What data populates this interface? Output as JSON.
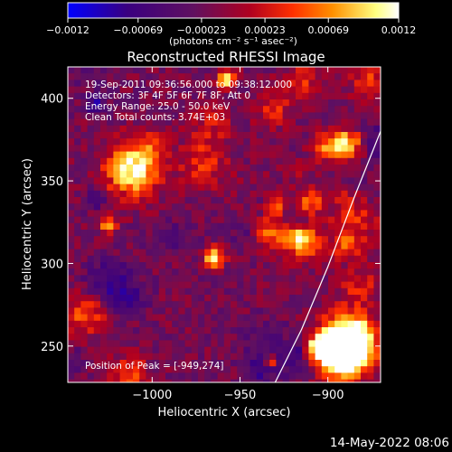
{
  "chart_data": {
    "type": "heatmap",
    "title": "Reconstructed RHESSI Image",
    "xlabel": "Heliocentric X (arcsec)",
    "ylabel": "Heliocentric Y (arcsec)",
    "xlim": [
      -1048,
      -870
    ],
    "ylim": [
      228,
      419
    ],
    "x_ticks": [
      -1000,
      -950,
      -900
    ],
    "x_tick_labels": [
      "−1000",
      "−950",
      "−900"
    ],
    "y_ticks": [
      250,
      300,
      350,
      400
    ],
    "y_tick_labels": [
      "250",
      "300",
      "350",
      "400"
    ],
    "colorbar": {
      "min": -0.0012,
      "max": 0.0012,
      "ticks": [
        -0.0012,
        -0.00069,
        -0.00023,
        0.00023,
        0.00069,
        0.0012
      ],
      "tick_labels": [
        "−0.0012",
        "−0.00069",
        "−0.00023",
        "0.00023",
        "0.00069",
        "0.0012"
      ],
      "unit_label": "(photons cm⁻² s⁻¹ asec⁻²)",
      "colors": [
        "#0000ff",
        "#3a0080",
        "#601060",
        "#b00020",
        "#ff3000",
        "#ff9000",
        "#ffff80",
        "#ffffff"
      ]
    },
    "info_lines": [
      "19-Sep-2011 09:36:56.000 to 09:38:12.000",
      "Detectors: 3F 4F 5F 6F 7F 8F, Att 0",
      "Energy Range: 25.0 - 50.0 keV",
      "Clean    Total counts: 3.74E+03"
    ],
    "peak_label": "Position of Peak = [-949,274]",
    "peak_position": [
      -949,
      274
    ],
    "limb_curve": [
      [
        -930,
        228
      ],
      [
        -915,
        260
      ],
      [
        -900,
        298
      ],
      [
        -885,
        340
      ],
      [
        -870,
        380
      ],
      [
        -852,
        419
      ]
    ],
    "grid": false,
    "colorbar_placement": "top"
  },
  "footer": {
    "date": "14-May-2022 08:06"
  }
}
